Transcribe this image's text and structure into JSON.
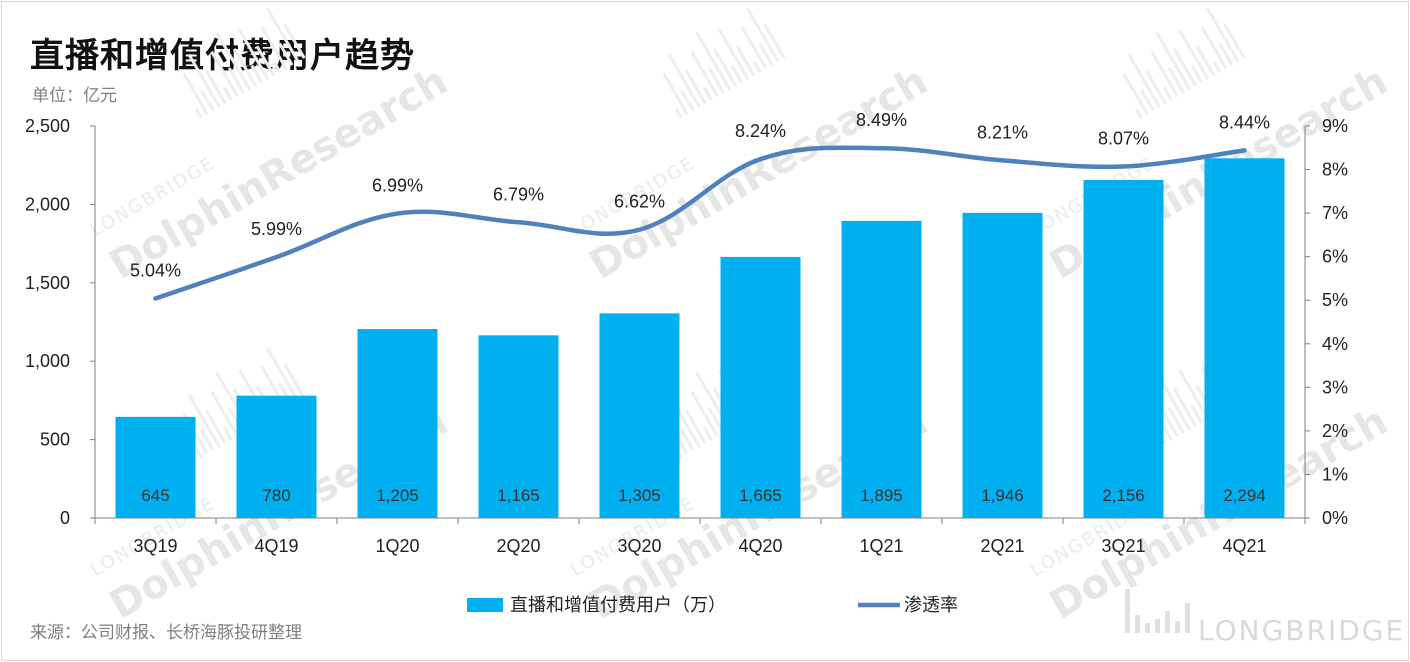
{
  "header": {
    "title": "直播和增值付费用户趋势",
    "unit": "单位：亿元"
  },
  "footer": {
    "source": "来源：公司财报、长桥海豚投研整理",
    "brand": "LONGBRIDGE"
  },
  "colors": {
    "bar": "#00b0f0",
    "line": "#4f81bd",
    "bar_label": "#333333"
  },
  "chart_data": {
    "type": "bar",
    "categories": [
      "3Q19",
      "4Q19",
      "1Q20",
      "2Q20",
      "3Q20",
      "4Q20",
      "1Q21",
      "2Q21",
      "3Q21",
      "4Q21"
    ],
    "series": [
      {
        "name": "直播和增值付费用户（万）",
        "type": "bar",
        "axis": "left",
        "values": [
          645,
          780,
          1205,
          1165,
          1305,
          1665,
          1895,
          1946,
          2156,
          2294
        ],
        "labels": [
          "645",
          "780",
          "1,205",
          "1,165",
          "1,305",
          "1,665",
          "1,895",
          "1,946",
          "2,156",
          "2,294"
        ]
      },
      {
        "name": "渗透率",
        "type": "line",
        "axis": "right",
        "values": [
          5.04,
          5.99,
          6.99,
          6.79,
          6.62,
          8.24,
          8.49,
          8.21,
          8.07,
          8.44
        ],
        "labels": [
          "5.04%",
          "5.99%",
          "6.99%",
          "6.79%",
          "6.62%",
          "8.24%",
          "8.49%",
          "8.21%",
          "8.07%",
          "8.44%"
        ]
      }
    ],
    "ylim_left": [
      0,
      2500
    ],
    "left_ticks": [
      "0",
      "500",
      "1,000",
      "1,500",
      "2,000",
      "2,500"
    ],
    "ylim_right": [
      0,
      9
    ],
    "right_ticks": [
      "0%",
      "1%",
      "2%",
      "3%",
      "4%",
      "5%",
      "6%",
      "7%",
      "8%",
      "9%"
    ],
    "legend_position": "bottom",
    "grid": false
  }
}
